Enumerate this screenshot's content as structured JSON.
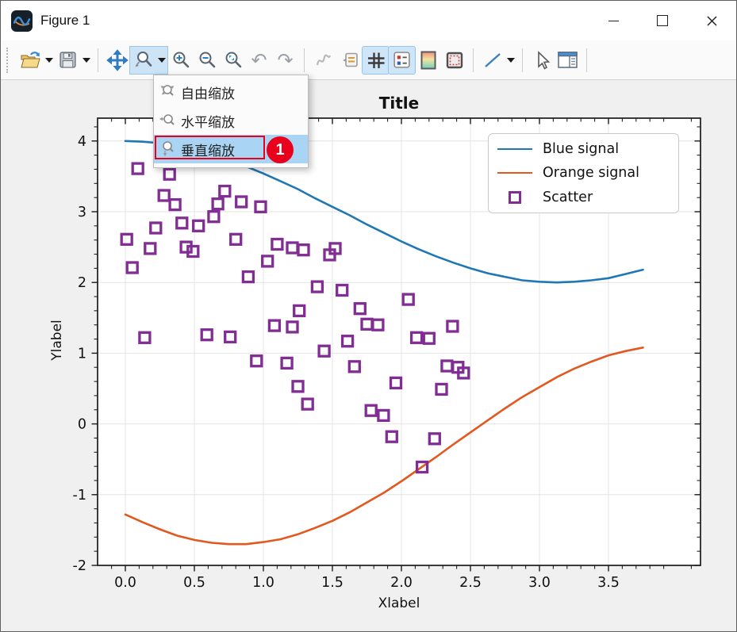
{
  "window": {
    "title": "Figure 1"
  },
  "icons": {
    "undo_glyph": "↶",
    "redo_glyph": "↷"
  },
  "toolbar": {
    "buttons": [
      {
        "name": "open",
        "icon": "folder-open-icon",
        "dropdown": true,
        "state": "normal"
      },
      {
        "name": "save",
        "icon": "save-icon",
        "dropdown": true,
        "state": "normal"
      },
      {
        "name": "pan",
        "icon": "pan-arrows-icon",
        "state": "normal"
      },
      {
        "name": "zoom-tool",
        "icon": "zoom-tool-icon",
        "dropdown": true,
        "state": "pressed"
      },
      {
        "name": "zoom-in",
        "icon": "zoom-in-icon",
        "state": "normal"
      },
      {
        "name": "zoom-out",
        "icon": "zoom-out-icon",
        "state": "normal"
      },
      {
        "name": "zoom-fit",
        "icon": "zoom-fit-icon",
        "state": "normal"
      },
      {
        "name": "undo",
        "icon": "undo-arrow-icon",
        "state": "normal"
      },
      {
        "name": "redo",
        "icon": "redo-arrow-icon",
        "state": "normal"
      },
      {
        "name": "curve-tool",
        "icon": "curve-icon",
        "state": "disabled"
      },
      {
        "name": "annotation",
        "icon": "callout-icon",
        "state": "normal"
      },
      {
        "name": "grid-toggle",
        "icon": "grid-icon",
        "state": "checked"
      },
      {
        "name": "legend-toggle",
        "icon": "legend-icon",
        "state": "checked"
      },
      {
        "name": "colormap",
        "icon": "colormap-icon",
        "state": "normal"
      },
      {
        "name": "axes-border",
        "icon": "dashed-border-icon",
        "state": "normal"
      },
      {
        "name": "line-style",
        "icon": "line-icon",
        "dropdown": true,
        "state": "normal"
      },
      {
        "name": "cursor",
        "icon": "cursor-icon",
        "state": "normal"
      },
      {
        "name": "properties",
        "icon": "panel-icon",
        "state": "normal"
      }
    ]
  },
  "menu": {
    "items": [
      {
        "label": "自由缩放",
        "icon": "zoom-free-icon",
        "selected": false
      },
      {
        "label": "水平缩放",
        "icon": "zoom-horizontal-icon",
        "selected": false
      },
      {
        "label": "垂直缩放",
        "icon": "zoom-vertical-icon",
        "selected": true
      }
    ],
    "badge": "1",
    "highlight_color": "#a9d4f3",
    "annotation_color": "#e8001c"
  },
  "chart_data": {
    "type": "line",
    "title": "Title",
    "xlabel": "Xlabel",
    "ylabel": "Ylabel",
    "xlim": [
      -0.2,
      4.17
    ],
    "ylim": [
      -2.0,
      4.33
    ],
    "grid": true,
    "x_ticks": [
      {
        "v": 0.0,
        "label": "0.0"
      },
      {
        "v": 0.5,
        "label": "0.5"
      },
      {
        "v": 1.0,
        "label": "1.0"
      },
      {
        "v": 1.5,
        "label": "1.5"
      },
      {
        "v": 2.0,
        "label": "2.0"
      },
      {
        "v": 2.5,
        "label": "2.5"
      },
      {
        "v": 3.0,
        "label": "3.0"
      },
      {
        "v": 3.5,
        "label": "3.5"
      }
    ],
    "y_ticks": [
      {
        "v": 4,
        "label": "4"
      },
      {
        "v": 3,
        "label": "3"
      },
      {
        "v": 2,
        "label": "2"
      },
      {
        "v": 1,
        "label": "1"
      },
      {
        "v": 0,
        "label": "0"
      },
      {
        "v": -1,
        "label": "-1"
      },
      {
        "v": -2,
        "label": "-2"
      }
    ],
    "legend": {
      "position": "upper right",
      "entries": [
        {
          "label": "Blue signal",
          "type": "line",
          "color": "#1f77b4"
        },
        {
          "label": "Orange signal",
          "type": "line",
          "color": "#e2581e"
        },
        {
          "label": "Scatter",
          "type": "square-marker",
          "color": "#812d93"
        }
      ]
    },
    "x": [
      0,
      0.125,
      0.25,
      0.375,
      0.5,
      0.625,
      0.75,
      0.875,
      1,
      1.125,
      1.25,
      1.375,
      1.5,
      1.625,
      1.75,
      1.875,
      2,
      2.125,
      2.25,
      2.375,
      2.5,
      2.625,
      2.75,
      2.875,
      3,
      3.125,
      3.25,
      3.375,
      3.5,
      3.625,
      3.75
    ],
    "series": [
      {
        "name": "Blue signal",
        "type": "line",
        "color": "#1f77b4",
        "y": [
          4,
          3.99,
          3.97,
          3.93,
          3.88,
          3.81,
          3.73,
          3.64,
          3.54,
          3.43,
          3.32,
          3.19,
          3.07,
          2.95,
          2.82,
          2.7,
          2.58,
          2.47,
          2.37,
          2.28,
          2.2,
          2.13,
          2.08,
          2.03,
          2.01,
          2,
          2.01,
          2.03,
          2.06,
          2.12,
          2.18
        ]
      },
      {
        "name": "Orange signal",
        "type": "line",
        "color": "#e2581e",
        "y": [
          -1.28,
          -1.39,
          -1.49,
          -1.58,
          -1.64,
          -1.68,
          -1.7,
          -1.7,
          -1.67,
          -1.63,
          -1.56,
          -1.47,
          -1.37,
          -1.25,
          -1.11,
          -0.97,
          -0.81,
          -0.64,
          -0.47,
          -0.29,
          -0.12,
          0.05,
          0.22,
          0.38,
          0.52,
          0.66,
          0.78,
          0.88,
          0.97,
          1.03,
          1.08
        ]
      },
      {
        "name": "Scatter",
        "type": "scatter",
        "color": "#812d93",
        "points": [
          [
            0.09,
            3.61
          ],
          [
            0.32,
            3.53
          ],
          [
            0.28,
            3.23
          ],
          [
            0.36,
            3.1
          ],
          [
            0.72,
            3.29
          ],
          [
            0.67,
            3.11
          ],
          [
            0.64,
            2.93
          ],
          [
            0.84,
            3.14
          ],
          [
            0.98,
            3.07
          ],
          [
            0.41,
            2.84
          ],
          [
            0.53,
            2.8
          ],
          [
            0.22,
            2.77
          ],
          [
            0.01,
            2.61
          ],
          [
            0.18,
            2.48
          ],
          [
            0.44,
            2.5
          ],
          [
            0.49,
            2.44
          ],
          [
            0.05,
            2.21
          ],
          [
            0.8,
            2.61
          ],
          [
            0.89,
            2.08
          ],
          [
            1.1,
            2.54
          ],
          [
            1.21,
            2.49
          ],
          [
            1.03,
            2.3
          ],
          [
            1.29,
            2.46
          ],
          [
            1.48,
            2.39
          ],
          [
            1.52,
            2.48
          ],
          [
            1.39,
            1.94
          ],
          [
            1.57,
            1.89
          ],
          [
            1.7,
            1.63
          ],
          [
            2.05,
            1.76
          ],
          [
            0.14,
            1.22
          ],
          [
            0.59,
            1.26
          ],
          [
            0.76,
            1.23
          ],
          [
            1.08,
            1.39
          ],
          [
            1.21,
            1.37
          ],
          [
            0.95,
            0.89
          ],
          [
            1.17,
            0.86
          ],
          [
            1.25,
            0.53
          ],
          [
            1.32,
            0.28
          ],
          [
            1.26,
            1.6
          ],
          [
            1.75,
            1.41
          ],
          [
            1.83,
            1.4
          ],
          [
            2.11,
            1.22
          ],
          [
            2.2,
            1.21
          ],
          [
            2.37,
            1.38
          ],
          [
            1.61,
            1.17
          ],
          [
            1.44,
            1.03
          ],
          [
            1.66,
            0.81
          ],
          [
            1.96,
            0.58
          ],
          [
            2.29,
            0.49
          ],
          [
            2.33,
            0.82
          ],
          [
            2.41,
            0.8
          ],
          [
            2.45,
            0.72
          ],
          [
            1.78,
            0.19
          ],
          [
            1.87,
            0.12
          ],
          [
            1.93,
            -0.18
          ],
          [
            2.24,
            -0.21
          ],
          [
            2.15,
            -0.61
          ]
        ]
      }
    ]
  }
}
